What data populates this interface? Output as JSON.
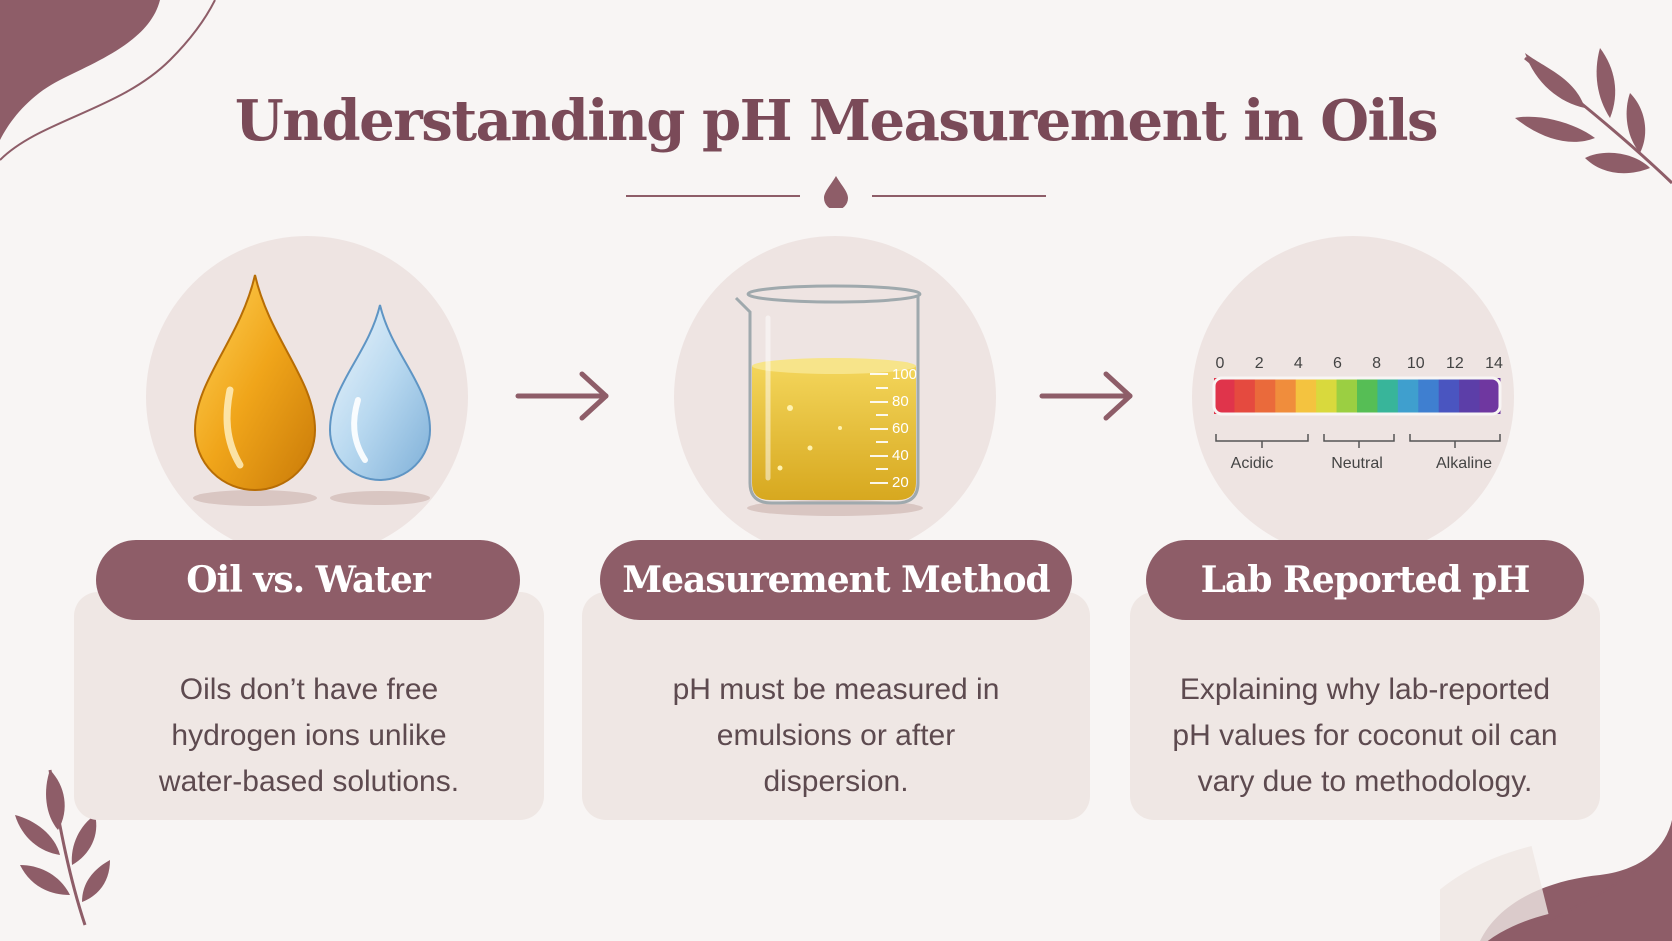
{
  "title": "Understanding pH Measurement in Oils",
  "colors": {
    "accent": "#8e5d68",
    "title": "#7a4a58",
    "card": "#efe7e4",
    "circle": "#eee4e2"
  },
  "steps": [
    {
      "icon": "oil-and-water-drops-icon",
      "heading": "Oil vs. Water",
      "text": "Oils don’t have free hydrogen ions unlike water-based solutions."
    },
    {
      "icon": "beaker-icon",
      "heading": "Measurement Method",
      "text": "pH must be measured in emulsions or after dispersion."
    },
    {
      "icon": "ph-scale-icon",
      "heading": "Lab Reported pH",
      "text": "Explaining why lab-reported pH values for coconut oil can vary due to methodology."
    }
  ],
  "beaker_marks": [
    "100",
    "80",
    "60",
    "40",
    "20"
  ],
  "ph_scale": {
    "ticks": [
      "0",
      "2",
      "4",
      "6",
      "8",
      "10",
      "12",
      "14"
    ],
    "colors": [
      "#e0344b",
      "#e54a3f",
      "#ea6a3b",
      "#f08d3c",
      "#f4c33f",
      "#d9d93d",
      "#9bcf42",
      "#56be55",
      "#38b59a",
      "#3f9fce",
      "#3f7fd0",
      "#4a55c0",
      "#5c3ea8",
      "#6f37a0"
    ],
    "labels": [
      "Acidic",
      "Neutral",
      "Alkaline"
    ]
  }
}
